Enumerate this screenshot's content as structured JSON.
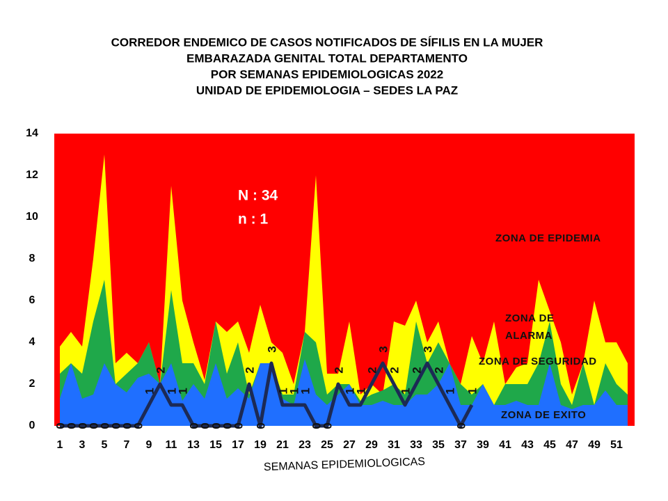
{
  "chart_data": {
    "type": "area",
    "title": [
      "CORREDOR  ENDEMICO  DE CASOS NOTIFICADOS  DE SÍFILIS  EN LA MUJER",
      "EMBARAZADA  GENITAL  TOTAL DEPARTAMENTO",
      "POR SEMANAS  EPIDEMIOLOGICAS  2022",
      "UNIDAD  DE EPIDEMIOLOGIA  – SEDES LA PAZ"
    ],
    "x_label": "SEMANAS EPIDEMIOLOGICAS",
    "categories": [
      1,
      null,
      3,
      null,
      5,
      null,
      7,
      null,
      9,
      null,
      11,
      null,
      13,
      null,
      15,
      null,
      17,
      null,
      19,
      null,
      21,
      null,
      23,
      null,
      25,
      null,
      27,
      null,
      29,
      null,
      31,
      null,
      33,
      null,
      35,
      null,
      37,
      null,
      39,
      null,
      41,
      null,
      43,
      null,
      45,
      null,
      47,
      null,
      49,
      null,
      51,
      null
    ],
    "ylim": [
      0,
      14
    ],
    "yticks": [
      0,
      2,
      4,
      6,
      8,
      10,
      12,
      14
    ],
    "epidemic_zone": {
      "name": "ZONA DE EPIDEMIA",
      "color": "#ff0000"
    },
    "series": [
      {
        "name": "ZONA DE ALARMA",
        "color": "#ffff00",
        "values": [
          3.8,
          4.5,
          3.8,
          8,
          13,
          3,
          3.5,
          3,
          4,
          2,
          11.5,
          6,
          4,
          2.2,
          5,
          4.5,
          5,
          3.5,
          5.8,
          4,
          3.5,
          2,
          4.5,
          12,
          2.5,
          2.5,
          5,
          1.5,
          2,
          1.5,
          5,
          4.8,
          6,
          4,
          5,
          3,
          2,
          4.3,
          3,
          5,
          2,
          2.8,
          3,
          7,
          5.5,
          4,
          1.5,
          3,
          6,
          4,
          4,
          3
        ]
      },
      {
        "name": "ZONA DE  SEGURIDAD",
        "color": "#1fa84a",
        "values": [
          2.5,
          3,
          2.5,
          5,
          7,
          2,
          2.5,
          3,
          4,
          2,
          6.5,
          3,
          3,
          2,
          5,
          2.5,
          4,
          1.5,
          3,
          3,
          1.5,
          1.5,
          4.5,
          4,
          1.5,
          2,
          2,
          1.2,
          1.5,
          1.7,
          2,
          1.5,
          5,
          3,
          4,
          3,
          2,
          1.5,
          2,
          1,
          2,
          2,
          2,
          3,
          5,
          2,
          1,
          3,
          1,
          3,
          2,
          1.5
        ]
      },
      {
        "name": "ZONA DE  EXITO",
        "color": "#1f6fff",
        "values": [
          1.3,
          3,
          1.3,
          1.5,
          3,
          2,
          1.6,
          2.3,
          2.5,
          2,
          3,
          1.2,
          2,
          1.3,
          3,
          1.3,
          1.8,
          1.3,
          3,
          3,
          1.3,
          1,
          3.2,
          1.5,
          1,
          1.5,
          2,
          1,
          1,
          1.2,
          1,
          1,
          1.5,
          1.5,
          2,
          3,
          1,
          1,
          2,
          1,
          1,
          1.2,
          1,
          1,
          3,
          1,
          0.8,
          1,
          1,
          1.7,
          1,
          1
        ]
      }
    ],
    "line": {
      "color": "#1c2a55",
      "values": [
        0,
        0,
        0,
        0,
        0,
        0,
        0,
        0,
        1,
        2,
        1,
        1,
        0,
        0,
        0,
        0,
        0,
        2,
        0,
        3,
        1,
        1,
        1,
        0,
        0,
        2,
        1,
        1,
        2,
        3,
        2,
        1,
        2,
        3,
        2,
        1,
        0,
        1,
        null,
        null,
        null,
        null,
        null,
        null,
        null,
        null,
        null,
        null,
        null,
        null,
        null,
        null
      ]
    },
    "annotations": [
      "N : 34",
      "n : 1"
    ]
  }
}
